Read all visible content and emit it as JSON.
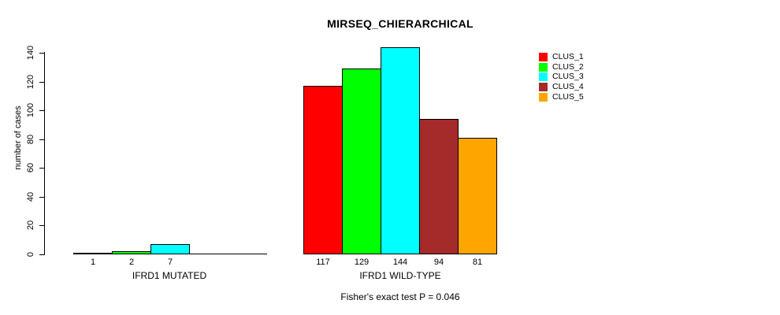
{
  "chart_data": {
    "type": "bar",
    "title": "MIRSEQ_CHIERARCHICAL",
    "subtitle": "Fisher's exact test P = 0.046",
    "ylabel": "number of cases",
    "xlabel": "",
    "ylim": [
      0,
      140
    ],
    "yticks": [
      0,
      20,
      40,
      60,
      80,
      100,
      120,
      140
    ],
    "grid": false,
    "legend_position": "top-right",
    "series_names": [
      "CLUS_1",
      "CLUS_2",
      "CLUS_3",
      "CLUS_4",
      "CLUS_5"
    ],
    "colors": [
      "#FF0000",
      "#00FF00",
      "#00FFFF",
      "#A52A2A",
      "#FFA500"
    ],
    "groups": [
      {
        "label": "IFRD1 MUTATED",
        "values": [
          1,
          2,
          7,
          0,
          0
        ],
        "bar_labels": [
          "1",
          "2",
          "7",
          "",
          ""
        ]
      },
      {
        "label": "IFRD1 WILD-TYPE",
        "values": [
          117,
          129,
          144,
          94,
          81
        ],
        "bar_labels": [
          "117",
          "129",
          "144",
          "94",
          "81"
        ]
      }
    ]
  }
}
